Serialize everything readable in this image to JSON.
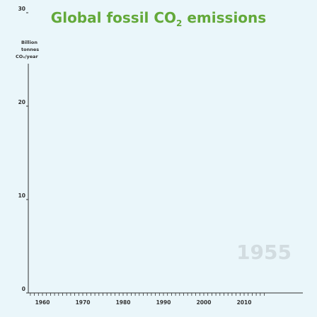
{
  "chart_data": {
    "type": "line",
    "title_main": "Global fossil CO",
    "title_sub": "2",
    "title_tail": " emissions",
    "ylabel_lines": [
      "Billion",
      "tonnes",
      "CO₂/year"
    ],
    "yticks": [
      0,
      10,
      20,
      30
    ],
    "xticks": [
      1960,
      1970,
      1980,
      1990,
      2000,
      2010
    ],
    "xlim": [
      1955,
      2015
    ],
    "ylim": [
      0,
      38
    ],
    "current_year": "1955",
    "series": [
      {
        "values": []
      }
    ],
    "grid": false,
    "colors": {
      "title": "#63a93a",
      "axis": "#333333",
      "watermark": "#d2dce0",
      "background": "#eaf6fa"
    }
  }
}
